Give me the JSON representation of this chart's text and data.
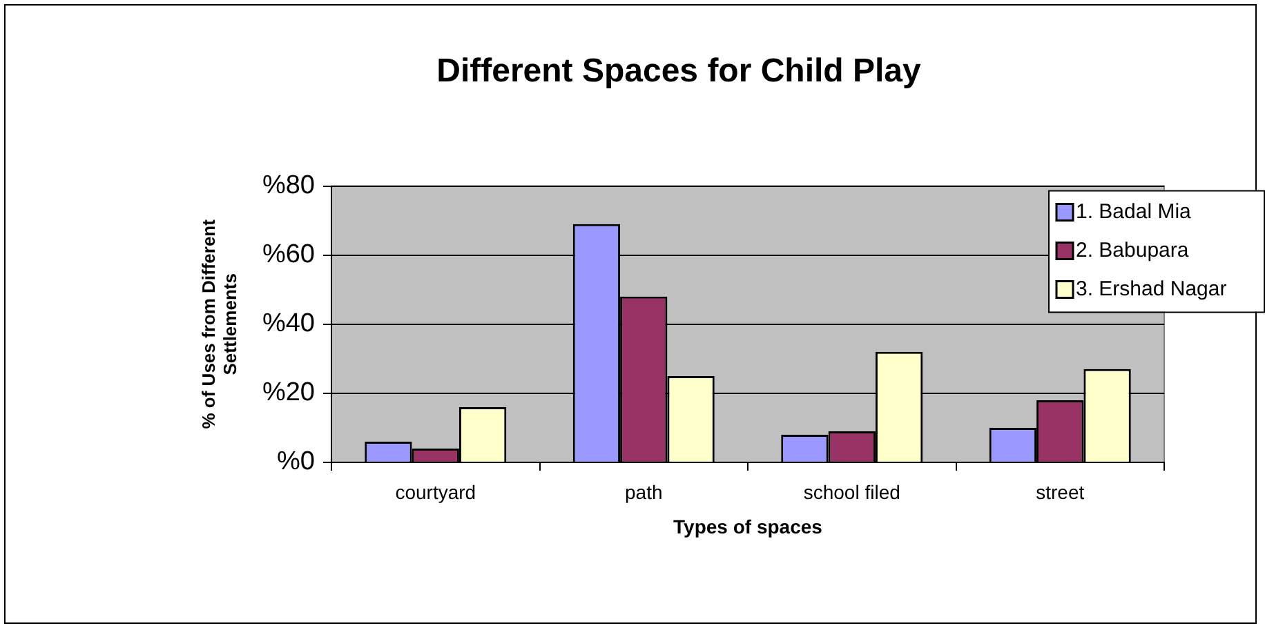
{
  "chart_data": {
    "type": "bar",
    "title": "Different Spaces for Child Play",
    "xlabel": "Types of spaces",
    "ylabel": "% of Uses from Different Settlements",
    "categories": [
      "courtyard",
      "path",
      "school filed",
      "street"
    ],
    "series": [
      {
        "name": "1. Badal Mia",
        "color": "#9999ff",
        "values": [
          6,
          69,
          8,
          10
        ]
      },
      {
        "name": "2. Babupara",
        "color": "#993366",
        "values": [
          4,
          48,
          9,
          18
        ]
      },
      {
        "name": "3. Ershad Nagar",
        "color": "#ffffcc",
        "values": [
          16,
          25,
          32,
          27
        ]
      }
    ],
    "ylim": [
      0,
      80
    ],
    "yticks": [
      {
        "value": 0,
        "label": "%0"
      },
      {
        "value": 20,
        "label": "%20"
      },
      {
        "value": 40,
        "label": "%40"
      },
      {
        "value": 60,
        "label": "%60"
      },
      {
        "value": 80,
        "label": "%80"
      }
    ],
    "grid": "y",
    "legend": "top right"
  }
}
